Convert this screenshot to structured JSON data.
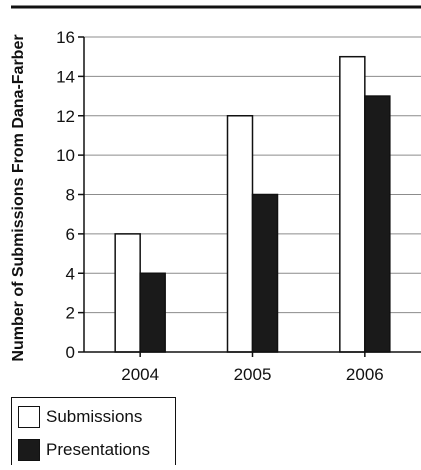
{
  "chart_data": {
    "type": "bar",
    "categories": [
      "2004",
      "2005",
      "2006"
    ],
    "series": [
      {
        "name": "Submissions",
        "values": [
          6,
          12,
          15
        ],
        "color": "#ffffff"
      },
      {
        "name": "Presentations",
        "values": [
          4,
          8,
          13
        ],
        "color": "#1a1a1a"
      }
    ],
    "ylabel": "Number of Submissions From Dana-Farber",
    "xlabel": "",
    "ylim": [
      0,
      16
    ],
    "yticks": [
      0,
      2,
      4,
      6,
      8,
      10,
      12,
      14,
      16
    ],
    "grid": true,
    "legend_position": "bottom-left"
  }
}
